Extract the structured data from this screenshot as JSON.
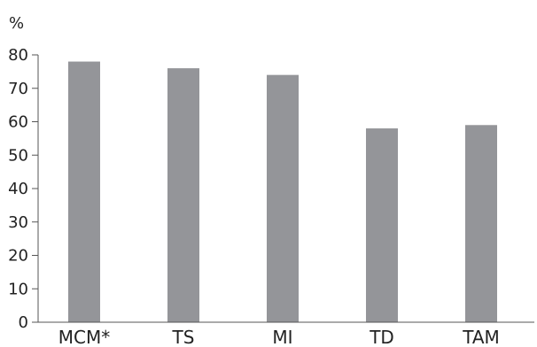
{
  "chart_data": {
    "type": "bar",
    "title": "",
    "xlabel": "",
    "ylabel": "%",
    "ylim": [
      0,
      80
    ],
    "yticks": [
      0,
      10,
      20,
      30,
      40,
      50,
      60,
      70,
      80
    ],
    "categories": [
      "MCM*",
      "TS",
      "MI",
      "TD",
      "TAM"
    ],
    "values": [
      78,
      76,
      74,
      58,
      59
    ],
    "grid": false,
    "legend": "none",
    "bar_color": "#949599",
    "axis_color": "#555555"
  }
}
